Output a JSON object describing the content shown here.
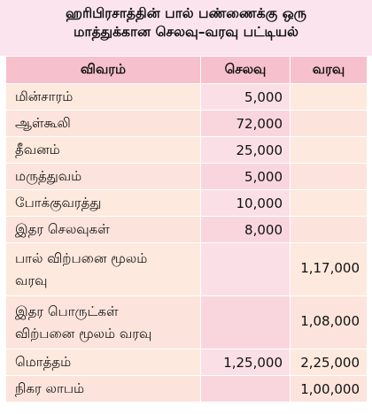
{
  "title": {
    "line1": "ஹரிபிரசாத்தின் பால் பண்ணைக்கு ஒரு",
    "line2": "மாத்துக்கான செலவு–வரவு பட்டியல்"
  },
  "table": {
    "headers": [
      "விவரம்",
      "செலவு",
      "வரவு"
    ],
    "rows": [
      {
        "item": "மின்சாரம்",
        "expense": "5,000",
        "income": ""
      },
      {
        "item": "ஆள்கூலி",
        "expense": "72,000",
        "income": ""
      },
      {
        "item": "தீவனம்",
        "expense": "25,000",
        "income": ""
      },
      {
        "item": "மருத்துவம்",
        "expense": "5,000",
        "income": ""
      },
      {
        "item": "போக்குவரத்து",
        "expense": "10,000",
        "income": ""
      },
      {
        "item": "இதர செலவுகள்",
        "expense": "8,000",
        "income": ""
      },
      {
        "item_line1": "பால் விற்பனை மூலம்",
        "item_line2": "வரவு",
        "expense": "",
        "income": "1,17,000"
      },
      {
        "item_line1": "இதர பொருட்கள்",
        "item_line2": "விற்பனை மூலம் வரவு",
        "expense": "",
        "income": "1,08,000"
      },
      {
        "item": "மொத்தம்",
        "expense": "1,25,000",
        "income": "2,25,000"
      },
      {
        "item": "நிகர லாபம்",
        "expense": "",
        "income": "1,00,000"
      }
    ]
  }
}
